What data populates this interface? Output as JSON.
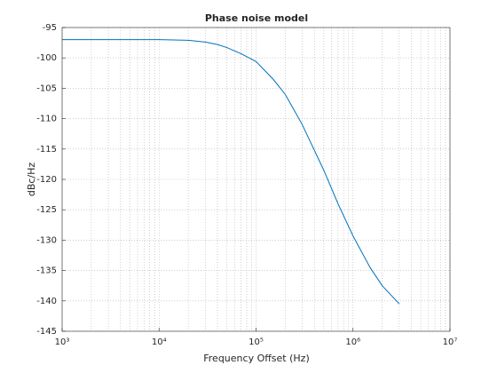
{
  "chart_data": {
    "type": "line",
    "title": "Phase noise model",
    "x_label": "Frequency Offset (Hz)",
    "y_label": "dBc/Hz",
    "x_scale": "log",
    "grid": true,
    "minor_grid": true,
    "xlim": [
      1000,
      10000000
    ],
    "xticks": [
      {
        "value": 1000,
        "label": "10³"
      },
      {
        "value": 10000,
        "label": "10⁴"
      },
      {
        "value": 100000,
        "label": "10⁵"
      },
      {
        "value": 1000000,
        "label": "10⁶"
      },
      {
        "value": 10000000,
        "label": "10⁷"
      }
    ],
    "ylim": [
      -145,
      -95
    ],
    "yticks": [
      -145,
      -140,
      -135,
      -130,
      -125,
      -120,
      -115,
      -110,
      -105,
      -100,
      -95
    ],
    "x": [
      1000,
      3000,
      10000,
      20000,
      30000,
      40000,
      50000,
      70000,
      100000,
      150000,
      200000,
      300000,
      500000,
      700000,
      1000000,
      1500000,
      2000000,
      3000000
    ],
    "series": [
      {
        "color": "#0072bd",
        "values": [
          -97,
          -97,
          -97,
          -97.1,
          -97.4,
          -97.8,
          -98.3,
          -99.3,
          -100.6,
          -103.5,
          -106,
          -111,
          -118.5,
          -124,
          -129.3,
          -134.5,
          -137.5,
          -140.5
        ]
      }
    ]
  }
}
